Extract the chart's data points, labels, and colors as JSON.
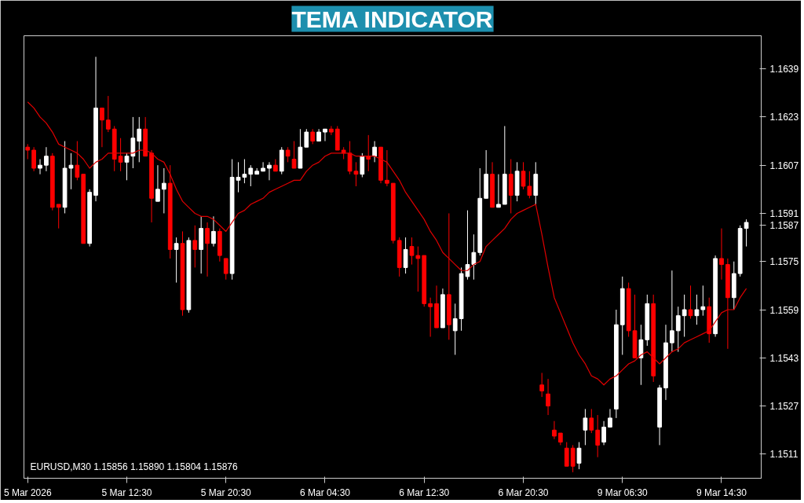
{
  "chart_data": {
    "type": "candlestick",
    "title": "TEMA INDICATOR",
    "annotations": [
      "EURUSD,M30  1.15856 1.15890 1.15804 1.15876"
    ],
    "categories": [
      "5 Mar 2026",
      null,
      null,
      null,
      null,
      null,
      null,
      null,
      null,
      null,
      null,
      null,
      null,
      null,
      null,
      null,
      "5 Mar 12:30",
      null,
      null,
      null,
      null,
      null,
      null,
      null,
      null,
      null,
      null,
      null,
      null,
      null,
      null,
      null,
      "5 Mar 20:30",
      null,
      null,
      null,
      null,
      null,
      null,
      null,
      null,
      null,
      null,
      null,
      null,
      null,
      null,
      null,
      "6 Mar 04:30",
      null,
      null,
      null,
      null,
      null,
      null,
      null,
      null,
      null,
      null,
      null,
      null,
      null,
      null,
      null,
      "6 Mar 12:30",
      null,
      null,
      null,
      null,
      null,
      null,
      null,
      null,
      null,
      null,
      null,
      null,
      null,
      null,
      null,
      "6 Mar 20:30",
      null,
      null,
      null,
      null,
      null,
      null,
      null,
      null,
      null,
      null,
      null,
      null,
      null,
      null,
      null,
      "9 Mar 06:30",
      null,
      null,
      null,
      null,
      null,
      null,
      null,
      null,
      null,
      null,
      null,
      null,
      null,
      null,
      null,
      "9 Mar 14:30",
      null,
      null,
      null,
      null
    ],
    "ohlc": [
      [
        1.1613,
        1.1614,
        1.1609,
        1.1612
      ],
      [
        1.1612,
        1.1613,
        1.1605,
        1.1606
      ],
      [
        1.1606,
        1.1609,
        1.1604,
        1.1607
      ],
      [
        1.1607,
        1.1613,
        1.1605,
        1.161
      ],
      [
        1.161,
        1.1611,
        1.1592,
        1.1593
      ],
      [
        1.1594,
        1.1594,
        1.1586,
        1.1593
      ],
      [
        1.1593,
        1.1615,
        1.1591,
        1.1606
      ],
      [
        1.1606,
        1.1611,
        1.1599,
        1.1607
      ],
      [
        1.1607,
        1.1615,
        1.1602,
        1.1603
      ],
      [
        1.1604,
        1.1604,
        1.1581,
        1.1581
      ],
      [
        1.1581,
        1.1599,
        1.158,
        1.1598
      ],
      [
        1.1597,
        1.1643,
        1.1595,
        1.1626
      ],
      [
        1.1626,
        1.1626,
        1.1613,
        1.1622
      ],
      [
        1.1622,
        1.163,
        1.1618,
        1.1619
      ],
      [
        1.1619,
        1.162,
        1.1605,
        1.1609
      ],
      [
        1.161,
        1.1616,
        1.1605,
        1.1608
      ],
      [
        1.1608,
        1.1611,
        1.1602,
        1.161
      ],
      [
        1.161,
        1.1623,
        1.1606,
        1.1616
      ],
      [
        1.1615,
        1.1623,
        1.1608,
        1.1619
      ],
      [
        1.1619,
        1.1623,
        1.161,
        1.161
      ],
      [
        1.1611,
        1.1612,
        1.1588,
        1.1596
      ],
      [
        1.1595,
        1.1607,
        1.1595,
        1.1599
      ],
      [
        1.1599,
        1.1606,
        1.1591,
        1.1601
      ],
      [
        1.1601,
        1.1607,
        1.1576,
        1.1579
      ],
      [
        1.1579,
        1.1583,
        1.1568,
        1.1581
      ],
      [
        1.1581,
        1.1585,
        1.1557,
        1.1559
      ],
      [
        1.1559,
        1.1583,
        1.1558,
        1.1582
      ],
      [
        1.1582,
        1.1587,
        1.1573,
        1.1579
      ],
      [
        1.1579,
        1.159,
        1.1571,
        1.1586
      ],
      [
        1.1586,
        1.1588,
        1.157,
        1.1581
      ],
      [
        1.1581,
        1.159,
        1.158,
        1.1585
      ],
      [
        1.1585,
        1.1586,
        1.1575,
        1.1577
      ],
      [
        1.1576,
        1.1576,
        1.1569,
        1.1571
      ],
      [
        1.1571,
        1.1609,
        1.1569,
        1.1603
      ],
      [
        1.1602,
        1.1608,
        1.1598,
        1.1603
      ],
      [
        1.1603,
        1.1609,
        1.1601,
        1.1604
      ],
      [
        1.1604,
        1.1607,
        1.16,
        1.1606
      ],
      [
        1.1604,
        1.1606,
        1.1604,
        1.1605
      ],
      [
        1.1605,
        1.1608,
        1.1605,
        1.1606
      ],
      [
        1.1606,
        1.1608,
        1.1602,
        1.1607
      ],
      [
        1.1607,
        1.1609,
        1.1605,
        1.1605
      ],
      [
        1.1605,
        1.1613,
        1.1604,
        1.1612
      ],
      [
        1.1612,
        1.1613,
        1.1608,
        1.161
      ],
      [
        1.1609,
        1.1615,
        1.1606,
        1.1606
      ],
      [
        1.1606,
        1.1619,
        1.1606,
        1.1613
      ],
      [
        1.1613,
        1.1619,
        1.1613,
        1.1618
      ],
      [
        1.1618,
        1.1619,
        1.1614,
        1.1615
      ],
      [
        1.1615,
        1.1619,
        1.1615,
        1.1618
      ],
      [
        1.1618,
        1.1619,
        1.1615,
        1.1619
      ],
      [
        1.1619,
        1.162,
        1.1617,
        1.1618
      ],
      [
        1.1619,
        1.162,
        1.1612,
        1.1612
      ],
      [
        1.1612,
        1.1613,
        1.1609,
        1.1611
      ],
      [
        1.1611,
        1.1615,
        1.1604,
        1.1605
      ],
      [
        1.1605,
        1.1608,
        1.16,
        1.1604
      ],
      [
        1.1604,
        1.1611,
        1.1603,
        1.161
      ],
      [
        1.161,
        1.1617,
        1.1605,
        1.1609
      ],
      [
        1.161,
        1.1615,
        1.1608,
        1.1613
      ],
      [
        1.1613,
        1.1613,
        1.1601,
        1.1602
      ],
      [
        1.1602,
        1.1612,
        1.16,
        1.1601
      ],
      [
        1.1601,
        1.1601,
        1.1581,
        1.1582
      ],
      [
        1.1582,
        1.1583,
        1.157,
        1.1573
      ],
      [
        1.1573,
        1.1583,
        1.1571,
        1.1579
      ],
      [
        1.158,
        1.1583,
        1.1574,
        1.1577
      ],
      [
        1.1577,
        1.158,
        1.1565,
        1.1576
      ],
      [
        1.1577,
        1.1577,
        1.156,
        1.1561
      ],
      [
        1.1561,
        1.1563,
        1.155,
        1.156
      ],
      [
        1.1561,
        1.1567,
        1.1553,
        1.1553
      ],
      [
        1.1553,
        1.1566,
        1.1553,
        1.1564
      ],
      [
        1.1564,
        1.1591,
        1.1549,
        1.1554
      ],
      [
        1.1552,
        1.1561,
        1.1544,
        1.1556
      ],
      [
        1.1556,
        1.1573,
        1.1552,
        1.1571
      ],
      [
        1.157,
        1.1592,
        1.1569,
        1.1574
      ],
      [
        1.1574,
        1.1584,
        1.1569,
        1.1578
      ],
      [
        1.1578,
        1.1606,
        1.1577,
        1.1596
      ],
      [
        1.1596,
        1.1612,
        1.1596,
        1.1604
      ],
      [
        1.1604,
        1.1608,
        1.1593,
        1.1593
      ],
      [
        1.1593,
        1.1604,
        1.1593,
        1.1594
      ],
      [
        1.1594,
        1.162,
        1.1594,
        1.1604
      ],
      [
        1.1604,
        1.1609,
        1.1591,
        1.1597
      ],
      [
        1.1597,
        1.1608,
        1.1595,
        1.1605
      ],
      [
        1.1605,
        1.1608,
        1.1599,
        1.16
      ],
      [
        1.16,
        1.1605,
        1.1596,
        1.1597
      ],
      [
        1.1597,
        1.1608,
        1.1594,
        1.1604
      ],
      [
        1.1534,
        1.1538,
        1.153,
        1.1532
      ],
      [
        1.1531,
        1.1536,
        1.1524,
        1.1527
      ],
      [
        1.1519,
        1.1522,
        1.1516,
        1.1517
      ],
      [
        1.1518,
        1.1518,
        1.1514,
        1.1515
      ],
      [
        1.1513,
        1.1515,
        1.1507,
        1.1507
      ],
      [
        1.1513,
        1.1514,
        1.1505,
        1.1507
      ],
      [
        1.1508,
        1.1515,
        1.1506,
        1.1513
      ],
      [
        1.1519,
        1.1526,
        1.1514,
        1.1523
      ],
      [
        1.1523,
        1.1526,
        1.1518,
        1.1519
      ],
      [
        1.1519,
        1.1524,
        1.151,
        1.1514
      ],
      [
        1.1515,
        1.1522,
        1.1514,
        1.152
      ],
      [
        1.152,
        1.1526,
        1.152,
        1.1523
      ],
      [
        1.1526,
        1.1559,
        1.1523,
        1.1554
      ],
      [
        1.1554,
        1.157,
        1.1544,
        1.1566
      ],
      [
        1.1566,
        1.1568,
        1.155,
        1.1552
      ],
      [
        1.1552,
        1.1564,
        1.1543,
        1.1543
      ],
      [
        1.1543,
        1.1554,
        1.1534,
        1.1549
      ],
      [
        1.1549,
        1.1564,
        1.1547,
        1.1561
      ],
      [
        1.1561,
        1.1564,
        1.1535,
        1.1537
      ],
      [
        1.152,
        1.1534,
        1.1514,
        1.1533
      ],
      [
        1.1533,
        1.1554,
        1.1529,
        1.1548
      ],
      [
        1.1548,
        1.1572,
        1.1545,
        1.1552
      ],
      [
        1.1552,
        1.156,
        1.1545,
        1.1557
      ],
      [
        1.1557,
        1.1564,
        1.155,
        1.1559
      ],
      [
        1.1559,
        1.1567,
        1.1556,
        1.1557
      ],
      [
        1.1557,
        1.1564,
        1.1554,
        1.1559
      ],
      [
        1.1559,
        1.1567,
        1.1557,
        1.156
      ],
      [
        1.156,
        1.1563,
        1.1548,
        1.1551
      ],
      [
        1.1551,
        1.1577,
        1.155,
        1.1576
      ],
      [
        1.1576,
        1.1586,
        1.1569,
        1.1574
      ],
      [
        1.1574,
        1.1576,
        1.1546,
        1.1563
      ],
      [
        1.1563,
        1.1575,
        1.1559,
        1.1571
      ],
      [
        1.1571,
        1.1587,
        1.157,
        1.1586
      ],
      [
        1.1586,
        1.1589,
        1.158,
        1.1588
      ]
    ],
    "series": [
      {
        "type": "line",
        "color": "#e00000",
        "values": [
          1.1628,
          1.1626,
          1.1623,
          1.1621,
          1.1618,
          1.1614,
          1.1613,
          1.1612,
          1.1611,
          1.1609,
          1.1606,
          1.1608,
          1.1609,
          1.1611,
          1.1611,
          1.1611,
          1.1611,
          1.1611,
          1.1612,
          1.1612,
          1.1611,
          1.1609,
          1.1608,
          1.1604,
          1.1599,
          1.1595,
          1.1593,
          1.1591,
          1.159,
          1.159,
          1.1589,
          1.1587,
          1.1585,
          1.1588,
          1.1591,
          1.1592,
          1.1594,
          1.1595,
          1.1596,
          1.1598,
          1.1599,
          1.16,
          1.1601,
          1.1602,
          1.1602,
          1.1605,
          1.1607,
          1.1608,
          1.161,
          1.1611,
          1.1611,
          1.1611,
          1.1611,
          1.161,
          1.161,
          1.161,
          1.161,
          1.1609,
          1.1608,
          1.1605,
          1.1602,
          1.1598,
          1.1595,
          1.1592,
          1.1589,
          1.1585,
          1.1582,
          1.1578,
          1.1576,
          1.1574,
          1.1572,
          1.1572,
          1.1574,
          1.1575,
          1.158,
          1.1582,
          1.1584,
          1.1586,
          1.1589,
          1.1591,
          1.1592,
          1.1593,
          1.1594,
          1.1584,
          1.1573,
          1.1563,
          1.1558,
          1.1553,
          1.1548,
          1.1544,
          1.1541,
          1.1537,
          1.1536,
          1.1534,
          1.1536,
          1.1537,
          1.1539,
          1.1541,
          1.1542,
          1.1544,
          1.1545,
          1.1543,
          1.1541,
          1.1543,
          1.1545,
          1.1546,
          1.1548,
          1.1549,
          1.155,
          1.1551,
          1.1552,
          1.1555,
          1.1558,
          1.1559,
          1.1559,
          1.1563,
          1.1566
        ]
      }
    ],
    "ylim": [
      1.1503,
      1.165
    ],
    "yticks": [
      1.1511,
      1.1527,
      1.1543,
      1.1559,
      1.1575,
      1.1587,
      1.1591,
      1.1607,
      1.1623,
      1.1639
    ],
    "grid": false
  }
}
